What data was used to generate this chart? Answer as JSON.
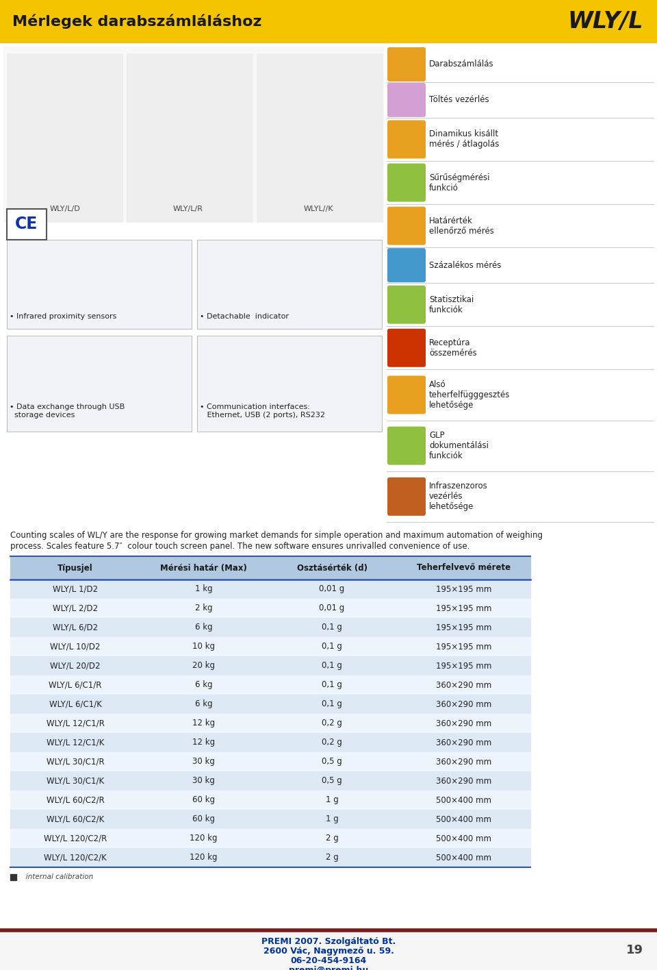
{
  "title": "Mérlegek darabszámláláshoz",
  "brand": "WLY/L",
  "header_bg": "#F5C400",
  "header_text_color": "#1a1a1a",
  "page_number": "19",
  "description_line1": "Counting scales of WL/Y are the response for growing market demands for simple operation and maximum automation of weighing",
  "description_line2": "process. Scales feature 5.7″  colour touch screen panel. The new software ensures unrivalled convenience of use.",
  "table_headers": [
    "Típusjel",
    "Mérési határ (Max)",
    "Osztásérték (d)",
    "Teherfelvevő mérete"
  ],
  "table_rows": [
    [
      "WLY/L 1/D2",
      "1 kg",
      "0,01 g",
      "195×195 mm"
    ],
    [
      "WLY/L 2/D2",
      "2 kg",
      "0,01 g",
      "195×195 mm"
    ],
    [
      "WLY/L 6/D2",
      "6 kg",
      "0,1 g",
      "195×195 mm"
    ],
    [
      "WLY/L 10/D2",
      "10 kg",
      "0,1 g",
      "195×195 mm"
    ],
    [
      "WLY/L 20/D2",
      "20 kg",
      "0,1 g",
      "195×195 mm"
    ],
    [
      "WLY/L 6/C1/R",
      "6 kg",
      "0,1 g",
      "360×290 mm"
    ],
    [
      "WLY/L 6/C1/K",
      "6 kg",
      "0,1 g",
      "360×290 mm"
    ],
    [
      "WLY/L 12/C1/R",
      "12 kg",
      "0,2 g",
      "360×290 mm"
    ],
    [
      "WLY/L 12/C1/K",
      "12 kg",
      "0,2 g",
      "360×290 mm"
    ],
    [
      "WLY/L 30/C1/R",
      "30 kg",
      "0,5 g",
      "360×290 mm"
    ],
    [
      "WLY/L 30/C1/K",
      "30 kg",
      "0,5 g",
      "360×290 mm"
    ],
    [
      "WLY/L 60/C2/R",
      "60 kg",
      "1 g",
      "500×400 mm"
    ],
    [
      "WLY/L 60/C2/K",
      "60 kg",
      "1 g",
      "500×400 mm"
    ],
    [
      "WLY/L 120/C2/R",
      "120 kg",
      "2 g",
      "500×400 mm"
    ],
    [
      "WLY/L 120/C2/K",
      "120 kg",
      "2 g",
      "500×400 mm"
    ]
  ],
  "table_row_bg_odd": "#dce9f5",
  "table_row_bg_even": "#edf4fb",
  "table_header_bg": "#b0c8e0",
  "table_header_text": "#1a1a1a",
  "footer_line_color": "#7a1a1a",
  "footer_text_color": "#003399",
  "footer_line1": "PREMI 2007. Szolgáltató Bt.",
  "footer_line2": "2600 Vác, Nagymező u. 59.",
  "footer_line3": "06-20-454-9164",
  "footer_line4": "premi@premi.hu",
  "internal_cal_text": "   internal calibration",
  "features": [
    {
      "label": "Darabszámlálás",
      "color": "#E8A020"
    },
    {
      "label": "Töltés vezérlés",
      "color": "#D4A0D4"
    },
    {
      "label": "Dinamikus kisállt\nmérés / átlagolás",
      "color": "#E8A020"
    },
    {
      "label": "Sűrűségmérési\nfunkció",
      "color": "#90C040"
    },
    {
      "label": "Határérték\nellenőrző mérés",
      "color": "#E8A020"
    },
    {
      "label": "Százalékos mérés",
      "color": "#4499CC"
    },
    {
      "label": "Statisztikai\nfunkciók",
      "color": "#90C040"
    },
    {
      "label": "Receptúra\nösszemérés",
      "color": "#CC3300"
    },
    {
      "label": "Alsó\nteherfelfügggesztés\nlehetősége",
      "color": "#E8A020"
    },
    {
      "label": "GLP\ndokumentálási\nfunkciók",
      "color": "#90C040"
    },
    {
      "label": "Infraszenzoros\nvezérlés\nlehetősége",
      "color": "#C06020"
    }
  ],
  "scale_labels": [
    "WLY/L/D",
    "WLY/L/R",
    "WLYL//K"
  ],
  "lower_left_caption": "• Infrared proximity sensors",
  "lower_right_caption": "• Detachable  indicator",
  "lower_left2_caption": "• Data exchange through USB\n  storage devices",
  "lower_right2_caption": "• Communication interfaces:\n   Ethernet, USB (2 ports), RS232"
}
